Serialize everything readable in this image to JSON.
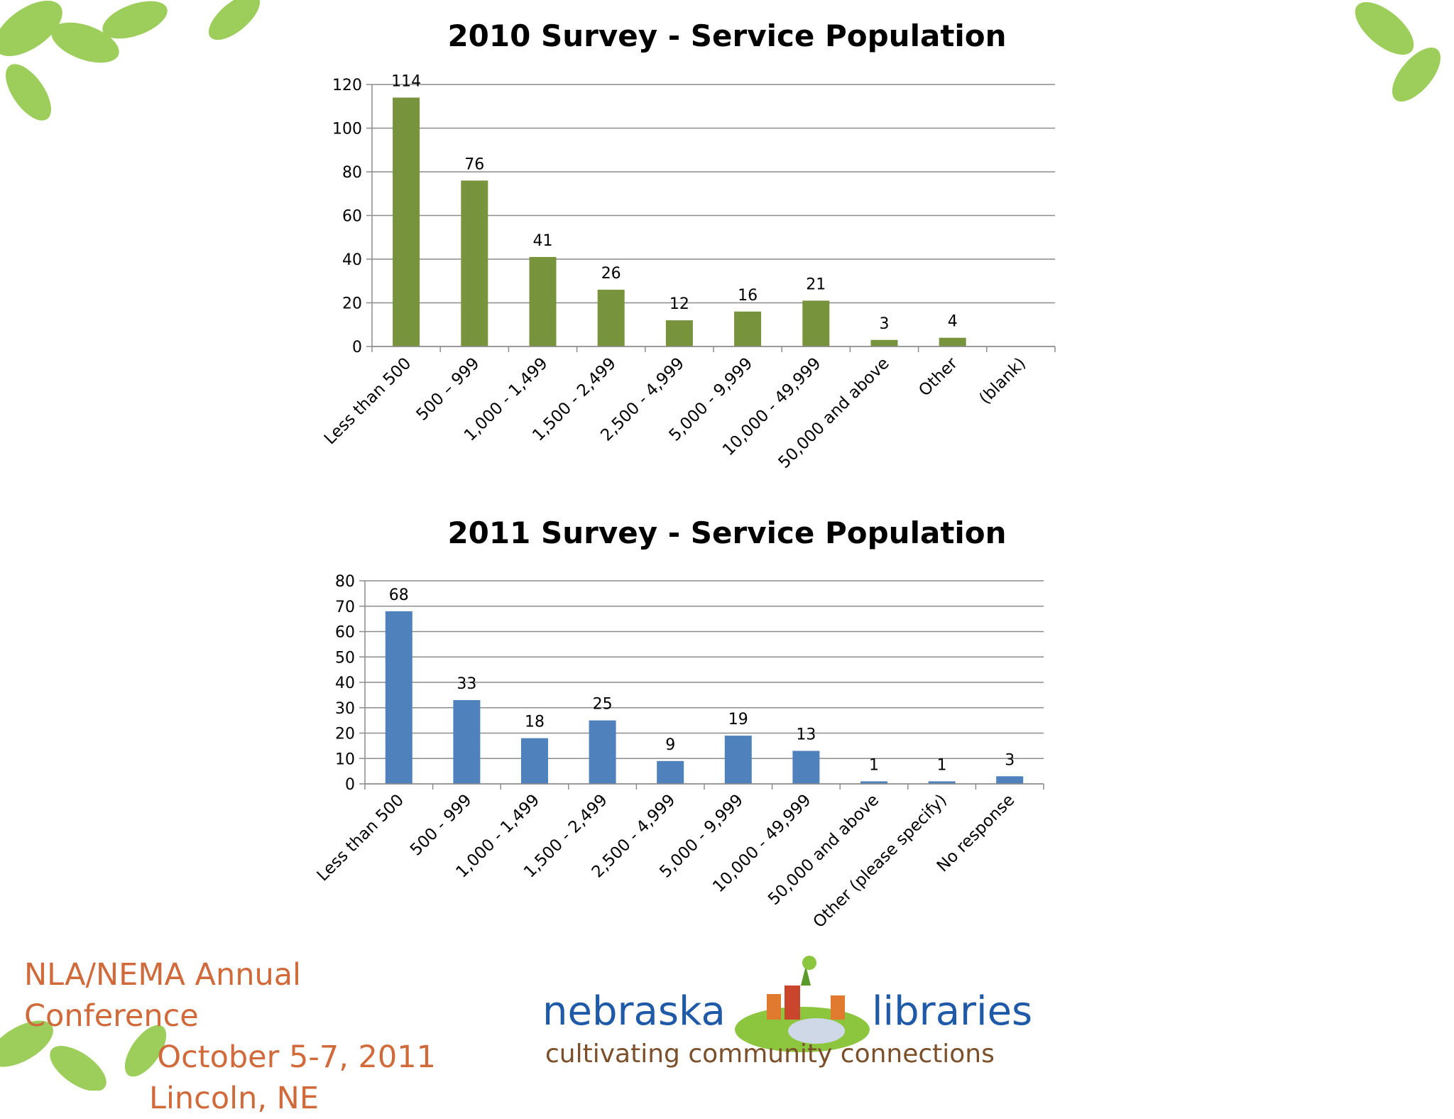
{
  "slide": {
    "conference": {
      "line1": "NLA/NEMA Annual Conference",
      "line2": "October 5-7, 2011",
      "line3": "Lincoln, NE"
    },
    "logo": {
      "word_left": "nebraska",
      "word_right": "libraries",
      "tagline": "cultivating community connections"
    },
    "colors": {
      "bar_2010": "#77933c",
      "bar_2011": "#4f81bd",
      "conference_text": "#d06a3b",
      "logo_blue": "#1f5aa8",
      "leaf_green": "#8cc63f"
    }
  },
  "chart_data": [
    {
      "type": "bar",
      "title": "2010 Survey - Service Population",
      "categories": [
        "Less than 500",
        "500 – 999",
        "1,000 - 1,499",
        "1,500 - 2,499",
        "2,500 - 4,999",
        "5,000 - 9,999",
        "10,000 - 49,999",
        "50,000 and above",
        "Other",
        "(blank)"
      ],
      "values": [
        114,
        76,
        41,
        26,
        12,
        16,
        21,
        3,
        4,
        null
      ],
      "data_labels": [
        "114",
        "76",
        "41",
        "26",
        "12",
        "16",
        "21",
        "3",
        "4",
        ""
      ],
      "ylim": [
        0,
        120
      ],
      "yticks": [
        0,
        20,
        40,
        60,
        80,
        100,
        120
      ],
      "grid": true,
      "legend": "none",
      "color": "#77933c"
    },
    {
      "type": "bar",
      "title": "2011 Survey - Service Population",
      "categories": [
        "Less than 500",
        "500 - 999",
        "1,000 - 1,499",
        "1,500 - 2,499",
        "2,500 - 4,999",
        "5,000 - 9,999",
        "10,000 - 49,999",
        "50,000 and above",
        "Other (please specify)",
        "No response"
      ],
      "values": [
        68,
        33,
        18,
        25,
        9,
        19,
        13,
        1,
        1,
        3
      ],
      "data_labels": [
        "68",
        "33",
        "18",
        "25",
        "9",
        "19",
        "13",
        "1",
        "1",
        "3"
      ],
      "ylim": [
        0,
        80
      ],
      "yticks": [
        0,
        10,
        20,
        30,
        40,
        50,
        60,
        70,
        80
      ],
      "grid": true,
      "legend": "none",
      "color": "#4f81bd"
    }
  ]
}
